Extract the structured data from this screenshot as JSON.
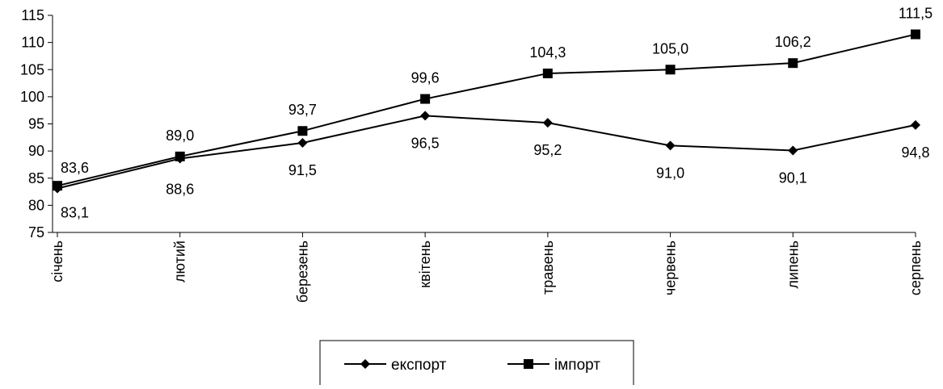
{
  "chart_data": {
    "type": "line",
    "categories": [
      "січень",
      "лютий",
      "березень",
      "квітень",
      "травень",
      "червень",
      "липень",
      "серпень"
    ],
    "ylim": [
      75,
      115
    ],
    "yticks": [
      75,
      80,
      85,
      90,
      95,
      100,
      105,
      110,
      115
    ],
    "grid": false,
    "legend_position": "bottom-center",
    "series": [
      {
        "name": "експорт",
        "marker": "diamond",
        "color": "#000000",
        "values": [
          83.1,
          88.6,
          91.5,
          96.5,
          95.2,
          91.0,
          90.1,
          94.8
        ],
        "value_labels": [
          "83,1",
          "88,6",
          "91,5",
          "96,5",
          "95,2",
          "91,0",
          "90,1",
          "94,8"
        ]
      },
      {
        "name": "імпорт",
        "marker": "square",
        "color": "#000000",
        "values": [
          83.6,
          89.0,
          93.7,
          99.6,
          104.3,
          105.0,
          106.2,
          111.5
        ],
        "value_labels": [
          "83,6",
          "89,0",
          "93,7",
          "99,6",
          "104,3",
          "105,0",
          "106,2",
          "111,5"
        ]
      }
    ]
  }
}
